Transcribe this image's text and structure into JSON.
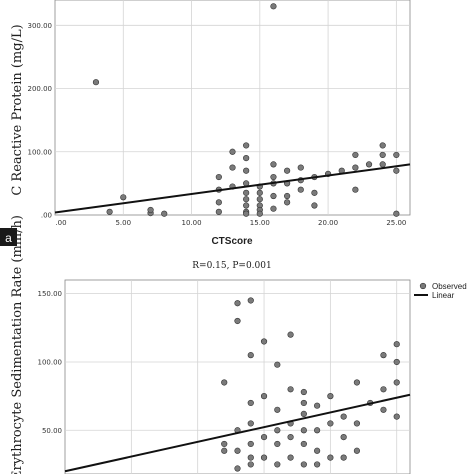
{
  "chart_data": [
    {
      "type": "scatter",
      "panel_label": "a",
      "title": "",
      "xlabel": "CTScore",
      "ylabel": "C Reactive Protein (mg/L)",
      "xlim": [
        0,
        26
      ],
      "ylim": [
        0,
        340
      ],
      "grid": true,
      "x_ticks": [
        0,
        5,
        10,
        15,
        20,
        25
      ],
      "x_tick_labels": [
        ".00",
        "5.00",
        "10.00",
        "15.00",
        "20.00",
        "25.00"
      ],
      "y_ticks": [
        0,
        100,
        200,
        300
      ],
      "y_tick_labels": [
        ".00",
        "100.00",
        "200.00",
        "300.00"
      ],
      "point_color": "#7a7a7a",
      "line_color": "#111111",
      "fit_line": {
        "x": [
          0,
          26
        ],
        "y": [
          4,
          80
        ]
      },
      "series": [
        {
          "x": [
            3,
            4,
            5,
            7,
            7,
            8,
            12,
            12,
            12,
            12,
            13,
            13,
            13,
            14,
            14,
            14,
            14,
            14,
            14,
            14,
            14,
            14,
            15,
            15,
            15,
            15,
            15,
            15,
            16,
            16,
            16,
            16,
            16,
            16,
            17,
            17,
            17,
            17,
            18,
            18,
            18,
            19,
            19,
            19,
            20,
            21,
            22,
            22,
            22,
            23,
            24,
            24,
            24,
            25,
            25,
            25
          ],
          "y": [
            210,
            5,
            28,
            3,
            8,
            2,
            60,
            40,
            20,
            5,
            100,
            75,
            45,
            110,
            90,
            70,
            50,
            35,
            25,
            15,
            5,
            2,
            45,
            35,
            25,
            15,
            8,
            2,
            330,
            80,
            60,
            50,
            30,
            10,
            70,
            50,
            30,
            20,
            75,
            55,
            40,
            60,
            35,
            15,
            65,
            70,
            95,
            75,
            40,
            80,
            110,
            95,
            80,
            95,
            70,
            2
          ]
        }
      ]
    },
    {
      "type": "scatter",
      "title": "R=0.15, P=0.001",
      "ylabel": "Erythrocyte Sedimentation Rate (mm/h)",
      "xlim": [
        0,
        26
      ],
      "ylim": [
        18,
        160
      ],
      "grid": true,
      "y_ticks": [
        50,
        100,
        150
      ],
      "y_tick_labels": [
        "50.00",
        "100.00",
        "150.00"
      ],
      "legend": {
        "position": "top-right",
        "entries": [
          "Observed",
          "Linear"
        ]
      },
      "point_color": "#7a7a7a",
      "line_color": "#111111",
      "fit_line": {
        "x": [
          0,
          26
        ],
        "y": [
          20,
          76
        ]
      },
      "series": [
        {
          "name": "Observed",
          "x": [
            12,
            12,
            12,
            13,
            13,
            13,
            13,
            13,
            14,
            14,
            14,
            14,
            14,
            14,
            14,
            15,
            15,
            15,
            15,
            16,
            16,
            16,
            16,
            16,
            17,
            17,
            17,
            17,
            17,
            18,
            18,
            18,
            18,
            18,
            18,
            19,
            19,
            19,
            19,
            20,
            20,
            20,
            21,
            21,
            21,
            22,
            22,
            22,
            23,
            24,
            24,
            24,
            25,
            25,
            25,
            25
          ],
          "y": [
            85,
            40,
            35,
            143,
            130,
            50,
            35,
            22,
            145,
            105,
            70,
            55,
            40,
            30,
            25,
            115,
            75,
            45,
            30,
            98,
            65,
            50,
            40,
            25,
            120,
            80,
            55,
            45,
            30,
            78,
            70,
            62,
            50,
            40,
            25,
            68,
            50,
            35,
            25,
            75,
            55,
            30,
            60,
            45,
            30,
            85,
            55,
            35,
            70,
            105,
            80,
            65,
            113,
            100,
            85,
            60
          ]
        }
      ]
    }
  ]
}
